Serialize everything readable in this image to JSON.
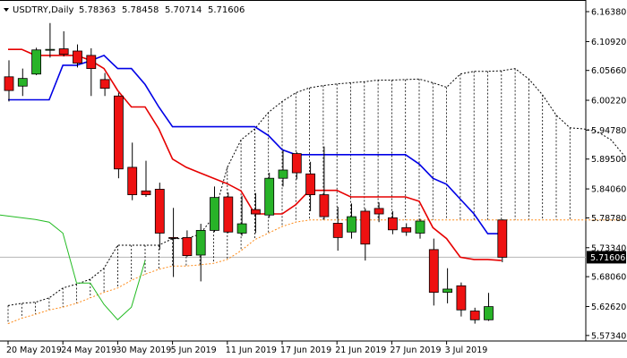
{
  "chart_data": {
    "type": "candlestick",
    "symbol": "USDTRY",
    "timeframe": "Daily",
    "ohlc_readout": [
      "5.78363",
      "5.78458",
      "5.70714",
      "5.71606"
    ],
    "current_price": "5.71606",
    "ylim": [
      5.5715,
      6.1638
    ],
    "y_ticks": [
      "6.16380",
      "6.10920",
      "6.05660",
      "6.00220",
      "5.94780",
      "5.89500",
      "5.84060",
      "5.78780",
      "5.73340",
      "5.68060",
      "5.62620",
      "5.57340"
    ],
    "x_tick_labels": [
      {
        "label": "20 May 2019",
        "index": 0
      },
      {
        "label": "24 May 2019",
        "index": 4
      },
      {
        "label": "30 May 2019",
        "index": 8
      },
      {
        "label": "5 Jun 2019",
        "index": 12
      },
      {
        "label": "11 Jun 2019",
        "index": 16
      },
      {
        "label": "17 Jun 2019",
        "index": 20
      },
      {
        "label": "21 Jun 2019",
        "index": 24
      },
      {
        "label": "27 Jun 2019",
        "index": 28
      },
      {
        "label": "3 Jul 2019",
        "index": 32
      }
    ],
    "candles": [
      {
        "o": 6.045,
        "h": 6.075,
        "l": 6.0,
        "c": 6.02
      },
      {
        "o": 6.028,
        "h": 6.06,
        "l": 6.01,
        "c": 6.042
      },
      {
        "o": 6.05,
        "h": 6.098,
        "l": 6.048,
        "c": 6.094
      },
      {
        "o": 6.094,
        "h": 6.143,
        "l": 6.08,
        "c": 6.095
      },
      {
        "o": 6.096,
        "h": 6.128,
        "l": 6.082,
        "c": 6.086
      },
      {
        "o": 6.092,
        "h": 6.104,
        "l": 6.062,
        "c": 6.07
      },
      {
        "o": 6.084,
        "h": 6.097,
        "l": 6.01,
        "c": 6.06
      },
      {
        "o": 6.04,
        "h": 6.052,
        "l": 6.01,
        "c": 6.024
      },
      {
        "o": 6.01,
        "h": 6.016,
        "l": 5.86,
        "c": 5.877
      },
      {
        "o": 5.88,
        "h": 5.925,
        "l": 5.82,
        "c": 5.83
      },
      {
        "o": 5.837,
        "h": 5.892,
        "l": 5.826,
        "c": 5.83
      },
      {
        "o": 5.84,
        "h": 5.852,
        "l": 5.73,
        "c": 5.76
      },
      {
        "o": 5.752,
        "h": 5.806,
        "l": 5.68,
        "c": 5.751
      },
      {
        "o": 5.752,
        "h": 5.765,
        "l": 5.717,
        "c": 5.719
      },
      {
        "o": 5.72,
        "h": 5.777,
        "l": 5.672,
        "c": 5.765
      },
      {
        "o": 5.765,
        "h": 5.845,
        "l": 5.762,
        "c": 5.825
      },
      {
        "o": 5.826,
        "h": 5.834,
        "l": 5.76,
        "c": 5.762
      },
      {
        "o": 5.76,
        "h": 5.828,
        "l": 5.755,
        "c": 5.777
      },
      {
        "o": 5.803,
        "h": 5.833,
        "l": 5.76,
        "c": 5.795
      },
      {
        "o": 5.793,
        "h": 5.87,
        "l": 5.788,
        "c": 5.86
      },
      {
        "o": 5.86,
        "h": 5.911,
        "l": 5.845,
        "c": 5.875
      },
      {
        "o": 5.905,
        "h": 5.908,
        "l": 5.858,
        "c": 5.87
      },
      {
        "o": 5.868,
        "h": 5.89,
        "l": 5.8,
        "c": 5.83
      },
      {
        "o": 5.83,
        "h": 5.918,
        "l": 5.785,
        "c": 5.79
      },
      {
        "o": 5.778,
        "h": 5.808,
        "l": 5.728,
        "c": 5.752
      },
      {
        "o": 5.762,
        "h": 5.814,
        "l": 5.75,
        "c": 5.79
      },
      {
        "o": 5.8,
        "h": 5.805,
        "l": 5.71,
        "c": 5.74
      },
      {
        "o": 5.805,
        "h": 5.816,
        "l": 5.78,
        "c": 5.795
      },
      {
        "o": 5.788,
        "h": 5.8,
        "l": 5.758,
        "c": 5.766
      },
      {
        "o": 5.77,
        "h": 5.778,
        "l": 5.755,
        "c": 5.762
      },
      {
        "o": 5.76,
        "h": 5.786,
        "l": 5.75,
        "c": 5.782
      },
      {
        "o": 5.73,
        "h": 5.75,
        "l": 5.628,
        "c": 5.652
      },
      {
        "o": 5.652,
        "h": 5.696,
        "l": 5.632,
        "c": 5.658
      },
      {
        "o": 5.664,
        "h": 5.67,
        "l": 5.608,
        "c": 5.62
      },
      {
        "o": 5.618,
        "h": 5.624,
        "l": 5.595,
        "c": 5.602
      },
      {
        "o": 5.602,
        "h": 5.651,
        "l": 5.6,
        "c": 5.626
      },
      {
        "o": 5.784,
        "h": 5.785,
        "l": 5.707,
        "c": 5.716
      }
    ],
    "tenkan_sen": [
      6.095,
      6.095,
      6.084,
      6.084,
      6.084,
      6.084,
      6.075,
      6.06,
      6.02,
      5.99,
      5.99,
      5.95,
      5.895,
      5.88,
      5.87,
      5.86,
      5.85,
      5.837,
      5.795,
      5.795,
      5.795,
      5.812,
      5.838,
      5.838,
      5.838,
      5.826,
      5.826,
      5.826,
      5.826,
      5.826,
      5.818,
      5.77,
      5.75,
      5.716,
      5.712,
      5.712,
      5.71
    ],
    "kijun_sen": [
      6.003,
      6.003,
      6.003,
      6.003,
      6.066,
      6.066,
      6.074,
      6.084,
      6.06,
      6.06,
      6.031,
      5.99,
      5.954,
      5.954,
      5.954,
      5.954,
      5.954,
      5.954,
      5.954,
      5.938,
      5.912,
      5.903,
      5.903,
      5.903,
      5.903,
      5.903,
      5.903,
      5.903,
      5.903,
      5.903,
      5.886,
      5.86,
      5.849,
      5.822,
      5.795,
      5.759,
      5.759
    ],
    "chikou_span": [
      5.793,
      5.785,
      5.78,
      5.76,
      5.669,
      5.669,
      5.63,
      5.602,
      5.625,
      5.71
    ],
    "senkou_span_a": [
      5.595,
      5.605,
      5.612,
      5.62,
      5.625,
      5.632,
      5.642,
      5.652,
      5.66,
      5.674,
      5.685,
      5.694,
      5.7,
      5.7,
      5.702,
      5.705,
      5.712,
      5.728,
      5.748,
      5.76,
      5.772,
      5.78,
      5.784,
      5.784,
      5.784,
      5.784,
      5.784,
      5.784,
      5.784,
      5.784,
      5.784,
      5.784,
      5.784,
      5.784,
      5.784,
      5.784,
      5.784,
      5.784,
      5.784,
      5.784,
      5.784,
      5.784,
      5.784,
      5.784,
      5.784,
      5.784,
      5.784,
      5.784,
      5.784,
      5.784,
      5.784,
      5.784,
      5.784,
      5.784,
      5.784,
      5.784,
      5.784,
      5.784,
      5.784,
      5.795
    ],
    "senkou_span_b": [
      5.628,
      5.632,
      5.634,
      5.642,
      5.66,
      5.667,
      5.676,
      5.696,
      5.738,
      5.738,
      5.738,
      5.738,
      5.75,
      5.75,
      5.758,
      5.79,
      5.88,
      5.93,
      5.95,
      5.98,
      6.0,
      6.016,
      6.025,
      6.029,
      6.032,
      6.034,
      6.036,
      6.039,
      6.039,
      6.04,
      6.041,
      6.034,
      6.026,
      6.05,
      6.055,
      6.055,
      6.056,
      6.06,
      6.041,
      6.012,
      5.975,
      5.952,
      5.95,
      5.945,
      5.93,
      5.9,
      5.895,
      5.87,
      5.85,
      5.84,
      5.83,
      5.82,
      5.812,
      5.808,
      5.805,
      5.803,
      5.801,
      5.8,
      5.8,
      5.81
    ],
    "colors": {
      "bull": "#28b328",
      "bear": "#ee1111",
      "tenkan": "#e60000",
      "kijun": "#0000e6",
      "chikou": "#22bb22",
      "senkou_a": "#ff8c1a",
      "senkou_b": "#000000",
      "grid": "#b4b4b4",
      "badge": "#000000"
    }
  }
}
